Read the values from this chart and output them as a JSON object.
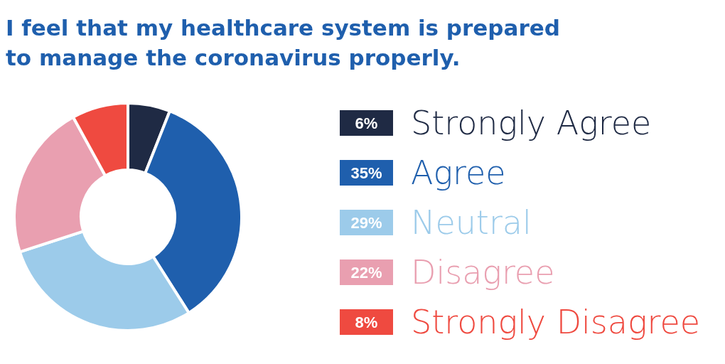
{
  "chart_data": {
    "type": "donut",
    "title": "I feel that my healthcare system is prepared to manage the coronavirus properly.",
    "categories": [
      "Strongly Agree",
      "Agree",
      "Neutral",
      "Disagree",
      "Strongly Disagree"
    ],
    "values": [
      6,
      35,
      29,
      22,
      8
    ],
    "colors": [
      "#1f2a44",
      "#1f5fad",
      "#9ccbea",
      "#e99fb0",
      "#ef4a40"
    ],
    "value_labels": [
      "6%",
      "35%",
      "29%",
      "22%",
      "8%"
    ],
    "legend": "right"
  }
}
